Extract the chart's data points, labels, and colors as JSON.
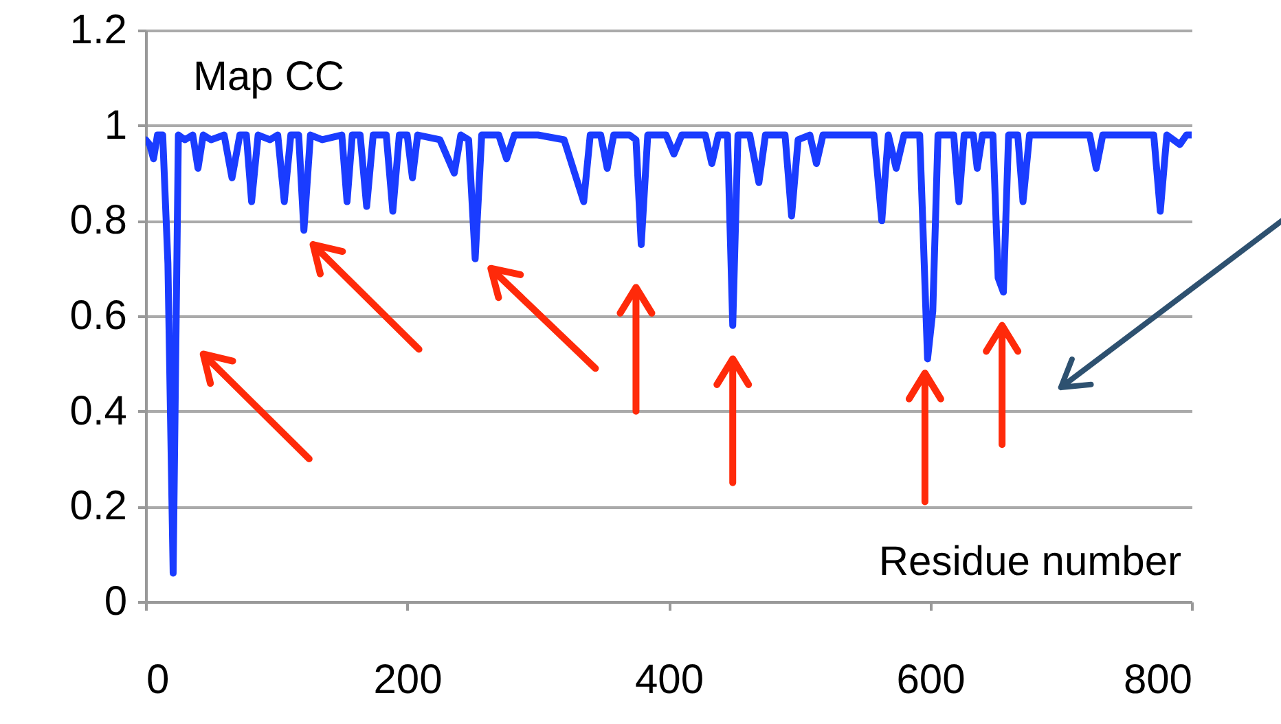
{
  "chart_data": {
    "type": "line",
    "xlabel": "Residue number",
    "ylabel": "Map CC",
    "x": [
      0,
      3,
      6,
      9,
      13,
      17,
      21,
      25,
      30,
      36,
      40,
      44,
      50,
      60,
      66,
      72,
      77,
      81,
      86,
      95,
      101,
      106,
      111,
      117,
      121,
      126,
      135,
      150,
      154,
      158,
      164,
      169,
      174,
      184,
      189,
      194,
      200,
      204,
      208,
      225,
      236,
      241,
      247,
      252,
      257,
      270,
      276,
      282,
      300,
      320,
      335,
      340,
      348,
      353,
      358,
      370,
      375,
      379,
      384,
      398,
      404,
      410,
      428,
      433,
      438,
      445,
      449,
      453,
      462,
      469,
      474,
      489,
      494,
      499,
      508,
      513,
      518,
      540,
      557,
      563,
      568,
      574,
      580,
      592,
      598,
      602,
      606,
      618,
      622,
      626,
      633,
      636,
      640,
      648,
      652,
      656,
      660,
      667,
      671,
      676,
      700,
      722,
      727,
      732,
      760,
      771,
      776,
      781,
      791,
      796,
      800
    ],
    "series": [
      {
        "color": "#1a3cff",
        "values": [
          0.97,
          0.96,
          0.93,
          0.98,
          0.98,
          0.71,
          0.06,
          0.98,
          0.97,
          0.98,
          0.91,
          0.98,
          0.97,
          0.98,
          0.89,
          0.98,
          0.98,
          0.84,
          0.98,
          0.97,
          0.98,
          0.84,
          0.98,
          0.98,
          0.78,
          0.98,
          0.97,
          0.98,
          0.84,
          0.98,
          0.98,
          0.83,
          0.98,
          0.98,
          0.82,
          0.98,
          0.98,
          0.89,
          0.98,
          0.97,
          0.9,
          0.98,
          0.97,
          0.72,
          0.98,
          0.98,
          0.93,
          0.98,
          0.98,
          0.97,
          0.84,
          0.98,
          0.98,
          0.91,
          0.98,
          0.98,
          0.97,
          0.75,
          0.98,
          0.98,
          0.94,
          0.98,
          0.98,
          0.92,
          0.98,
          0.98,
          0.58,
          0.98,
          0.98,
          0.88,
          0.98,
          0.98,
          0.81,
          0.97,
          0.98,
          0.92,
          0.98,
          0.98,
          0.98,
          0.8,
          0.98,
          0.91,
          0.98,
          0.98,
          0.51,
          0.61,
          0.98,
          0.98,
          0.84,
          0.98,
          0.98,
          0.91,
          0.98,
          0.98,
          0.68,
          0.65,
          0.98,
          0.98,
          0.84,
          0.98,
          0.98,
          0.98,
          0.91,
          0.98,
          0.98,
          0.98,
          0.82,
          0.98,
          0.96,
          0.98,
          0.98
        ]
      }
    ],
    "xlim": [
      0,
      800
    ],
    "xticks": [
      0,
      200,
      400,
      600,
      800
    ],
    "ylim": [
      0,
      1.2
    ],
    "yticks": [
      0,
      0.2,
      0.4,
      0.6,
      0.8,
      1,
      1.2
    ],
    "grid": "y"
  }
}
